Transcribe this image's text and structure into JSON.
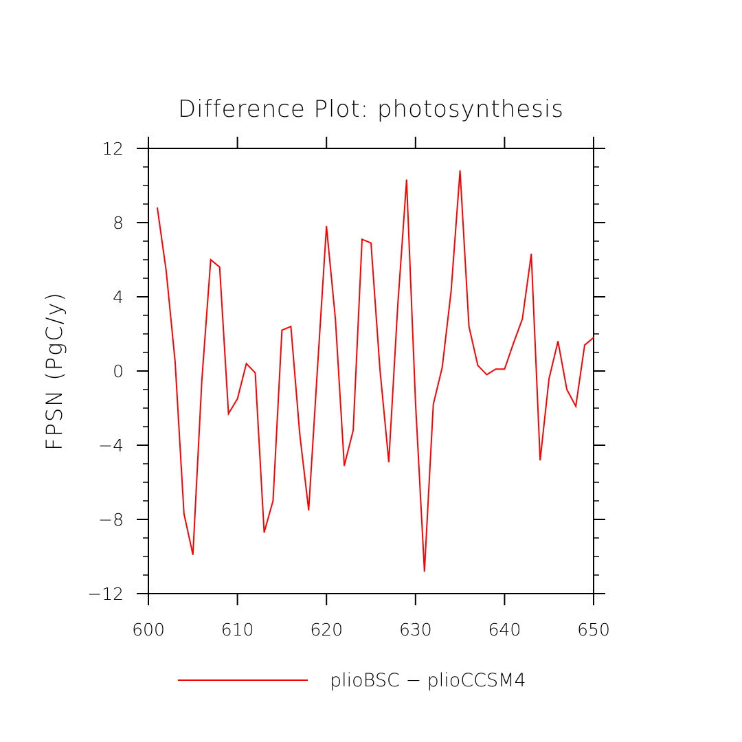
{
  "chart_data": {
    "type": "line",
    "title": "Difference Plot: photosynthesis",
    "xlabel": "",
    "ylabel": "FPSN  (PgC/y)",
    "xlim": [
      600,
      650
    ],
    "ylim": [
      -12,
      12
    ],
    "x_ticks": [
      600,
      610,
      620,
      630,
      640,
      650
    ],
    "x_tick_labels": [
      "600",
      "610",
      "620",
      "630",
      "640",
      "650"
    ],
    "y_ticks": [
      -12,
      -8,
      -4,
      0,
      4,
      8,
      12
    ],
    "y_tick_labels": [
      "−12",
      "−8",
      "−4",
      "0",
      "4",
      "8",
      "12"
    ],
    "grid": false,
    "legend_position": "bottom",
    "series": [
      {
        "name": "plioBSC − plioCCSM4",
        "color": "#ff0000",
        "x": [
          601,
          602,
          603,
          604,
          605,
          606,
          607,
          608,
          609,
          610,
          611,
          612,
          613,
          614,
          615,
          616,
          617,
          618,
          619,
          620,
          621,
          622,
          623,
          624,
          625,
          626,
          627,
          628,
          629,
          630,
          631,
          632,
          633,
          634,
          635,
          636,
          637,
          638,
          639,
          640,
          641,
          642,
          643,
          644,
          645,
          646,
          647,
          648,
          649,
          650
        ],
        "values": [
          8.8,
          5.4,
          0.5,
          -7.7,
          -9.9,
          -0.5,
          6.0,
          5.6,
          -2.3,
          -1.5,
          0.4,
          -0.1,
          -8.7,
          -7.0,
          2.2,
          2.4,
          -3.4,
          -7.5,
          0.2,
          7.8,
          2.8,
          -5.1,
          -3.2,
          7.1,
          6.9,
          0.1,
          -4.9,
          3.5,
          10.3,
          -1.7,
          -10.8,
          -1.8,
          0.2,
          4.3,
          10.8,
          2.4,
          0.3,
          -0.2,
          0.1,
          0.1,
          1.5,
          2.8,
          6.3,
          -4.8,
          -0.4,
          1.6,
          -1.0,
          -1.9,
          1.4,
          1.8
        ]
      }
    ]
  }
}
